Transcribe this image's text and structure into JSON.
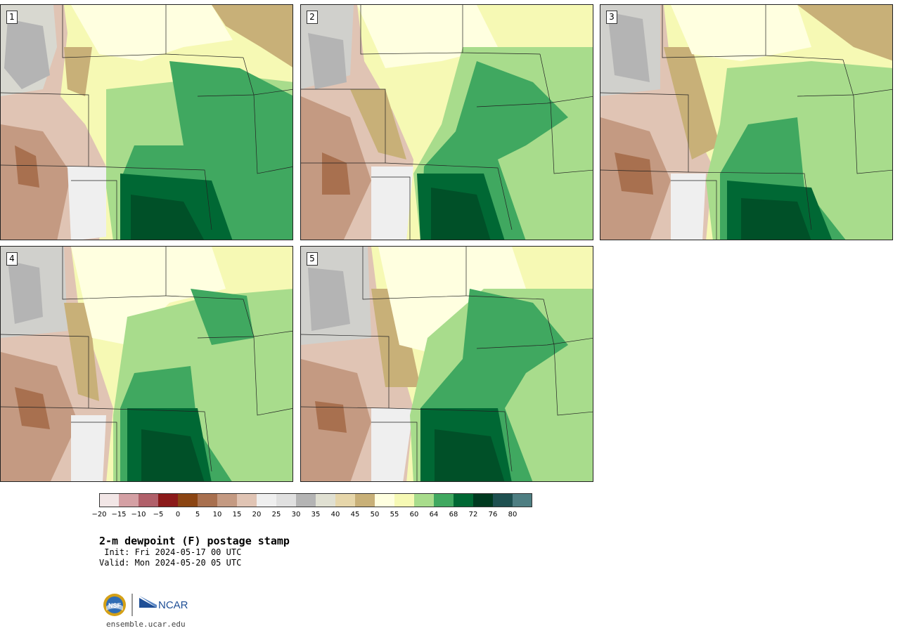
{
  "panels": [
    {
      "label": "1"
    },
    {
      "label": "2"
    },
    {
      "label": "3"
    },
    {
      "label": "4"
    },
    {
      "label": "5"
    }
  ],
  "colorbar": {
    "colors": [
      "#f2e6e6",
      "#d4a0a4",
      "#b0606a",
      "#8b1a1a",
      "#8b4513",
      "#a8704f",
      "#c49a82",
      "#e0c4b4",
      "#efefef",
      "#e0e0e0",
      "#b4b4b4",
      "#e0e0d2",
      "#e6d6aa",
      "#c8b078",
      "#ffffe0",
      "#f6f9b4",
      "#a8dc8c",
      "#40a860",
      "#006834",
      "#003a20",
      "#1e5050",
      "#4e7e82"
    ],
    "tick_labels": [
      "−20",
      "−15",
      "−10",
      "−5",
      "0",
      "5",
      "10",
      "15",
      "20",
      "25",
      "30",
      "35",
      "40",
      "45",
      "50",
      "55",
      "60",
      "64",
      "68",
      "72",
      "76",
      "80"
    ]
  },
  "title": "2-m dewpoint (F) postage stamp",
  "init_line": " Init: Fri 2024-05-17 00 UTC",
  "valid_line": "Valid: Mon 2024-05-20 05 UTC",
  "logo": {
    "nsf_text": "NSF",
    "ncar_text": "NCAR"
  },
  "site_url": "ensemble.ucar.edu"
}
